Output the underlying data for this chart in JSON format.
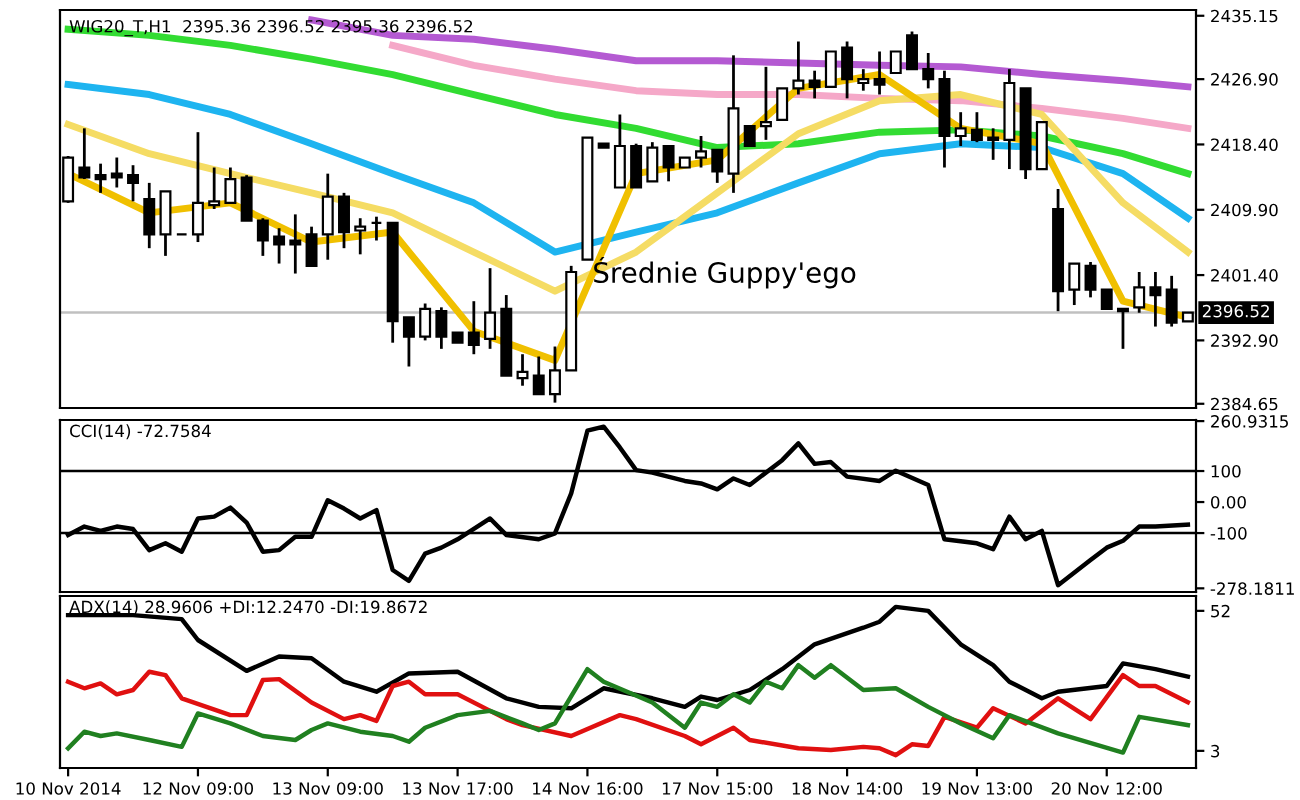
{
  "chart_data": [
    {
      "type": "candlestick",
      "title": "WIG20_T,H1  2395.36 2396.52 2395.36 2396.52",
      "annotations": [
        "Średnie Guppy'ego"
      ],
      "categories": [
        null,
        null,
        null,
        null,
        null,
        null,
        null,
        null,
        null,
        null,
        null,
        null,
        null,
        null,
        null,
        null,
        null,
        null,
        null,
        null,
        null,
        null,
        null,
        null,
        null,
        null,
        null,
        null,
        null,
        null,
        null,
        null,
        null,
        null,
        null,
        null,
        null,
        null,
        null,
        null,
        null,
        null,
        null,
        null,
        null,
        null,
        null,
        null,
        null,
        null,
        null,
        null,
        null,
        null,
        null,
        null,
        null,
        null,
        null,
        null,
        null,
        null,
        null,
        null,
        null,
        null,
        null,
        null,
        null,
        null
      ],
      "ohlc": [
        [
          2411.0,
          2416.9,
          2410.8,
          2416.7
        ],
        [
          2415.4,
          2420.5,
          2413.9,
          2414.1
        ],
        [
          2414.4,
          2415.9,
          2412.1,
          2413.9
        ],
        [
          2414.6,
          2416.7,
          2412.8,
          2414.1
        ],
        [
          2414.4,
          2415.7,
          2411.0,
          2413.4
        ],
        [
          2411.3,
          2413.4,
          2404.9,
          2406.7
        ],
        [
          2406.7,
          2412.3,
          2403.9,
          2412.3
        ],
        [
          2406.7,
          2406.7,
          2406.7,
          2406.7
        ],
        [
          2406.7,
          2420.0,
          2405.7,
          2410.8
        ],
        [
          2410.5,
          2415.4,
          2410.0,
          2411.0
        ],
        [
          2410.8,
          2415.4,
          2410.8,
          2413.9
        ],
        [
          2414.1,
          2414.4,
          2408.5,
          2408.5
        ],
        [
          2408.5,
          2408.8,
          2403.9,
          2405.9
        ],
        [
          2406.4,
          2407.5,
          2402.9,
          2405.4
        ],
        [
          2405.9,
          2409.3,
          2401.6,
          2405.4
        ],
        [
          2406.7,
          2407.7,
          2402.6,
          2402.6
        ],
        [
          2406.7,
          2414.6,
          2403.4,
          2411.6
        ],
        [
          2411.6,
          2412.1,
          2404.9,
          2407.0
        ],
        [
          2407.2,
          2408.8,
          2404.1,
          2407.7
        ],
        [
          2408.2,
          2409.0,
          2405.9,
          2408.2
        ],
        [
          2408.2,
          2408.2,
          2392.6,
          2395.4
        ],
        [
          2395.9,
          2395.9,
          2389.5,
          2393.4
        ],
        [
          2393.4,
          2397.7,
          2392.9,
          2397.0
        ],
        [
          2396.7,
          2397.2,
          2391.8,
          2393.4
        ],
        [
          2393.9,
          2393.9,
          2392.6,
          2392.6
        ],
        [
          2393.9,
          2398.0,
          2391.1,
          2392.3
        ],
        [
          2393.1,
          2402.3,
          2391.8,
          2396.5
        ],
        [
          2397.0,
          2398.8,
          2388.3,
          2388.3
        ],
        [
          2388.0,
          2391.1,
          2387.0,
          2388.8
        ],
        [
          2388.3,
          2390.8,
          2385.9,
          2385.9
        ],
        [
          2385.9,
          2392.1,
          2384.8,
          2389.0
        ],
        [
          2389.0,
          2402.6,
          2389.0,
          2401.8
        ],
        [
          2403.4,
          2419.3,
          2403.4,
          2419.3
        ],
        [
          2418.5,
          2418.5,
          2418.0,
          2418.0
        ],
        [
          2412.8,
          2422.3,
          2412.8,
          2418.2
        ],
        [
          2418.2,
          2418.5,
          2412.8,
          2412.8
        ],
        [
          2413.6,
          2418.7,
          2413.6,
          2418.0
        ],
        [
          2418.2,
          2418.2,
          2413.6,
          2415.4
        ],
        [
          2415.4,
          2416.7,
          2415.4,
          2416.7
        ],
        [
          2416.7,
          2419.5,
          2415.4,
          2417.5
        ],
        [
          2417.7,
          2417.7,
          2413.4,
          2414.9
        ],
        [
          2414.6,
          2430.0,
          2412.1,
          2423.1
        ],
        [
          2420.8,
          2420.8,
          2418.2,
          2418.2
        ],
        [
          2420.8,
          2428.5,
          2419.0,
          2421.3
        ],
        [
          2421.6,
          2425.7,
          2421.6,
          2425.7
        ],
        [
          2425.7,
          2431.8,
          2424.9,
          2426.7
        ],
        [
          2426.7,
          2428.0,
          2424.4,
          2425.9
        ],
        [
          2425.9,
          2430.5,
          2425.9,
          2430.5
        ],
        [
          2431.0,
          2431.8,
          2424.4,
          2426.9
        ],
        [
          2426.4,
          2428.2,
          2425.4,
          2426.9
        ],
        [
          2426.9,
          2430.5,
          2424.9,
          2426.2
        ],
        [
          2427.7,
          2430.5,
          2427.7,
          2430.5
        ],
        [
          2432.6,
          2433.1,
          2428.2,
          2428.2
        ],
        [
          2428.2,
          2430.3,
          2425.7,
          2426.9
        ],
        [
          2426.9,
          2428.0,
          2415.4,
          2419.5
        ],
        [
          2419.5,
          2422.6,
          2418.2,
          2420.5
        ],
        [
          2420.3,
          2422.6,
          2418.7,
          2419.0
        ],
        [
          2419.3,
          2420.5,
          2416.4,
          2419.0
        ],
        [
          2419.0,
          2428.2,
          2415.2,
          2426.4
        ],
        [
          2425.7,
          2425.7,
          2413.9,
          2415.2
        ],
        [
          2415.2,
          2421.3,
          2415.2,
          2421.3
        ],
        [
          2410.0,
          2412.6,
          2396.7,
          2399.3
        ],
        [
          2399.5,
          2402.9,
          2397.5,
          2402.9
        ],
        [
          2402.6,
          2403.1,
          2398.5,
          2399.5
        ],
        [
          2399.5,
          2399.5,
          2397.0,
          2397.0
        ],
        [
          2397.0,
          2397.0,
          2391.8,
          2396.7
        ],
        [
          2397.2,
          2401.8,
          2396.5,
          2399.8
        ],
        [
          2399.8,
          2401.8,
          2394.7,
          2398.8
        ],
        [
          2399.5,
          2401.3,
          2394.7,
          2395.2
        ],
        [
          2395.36,
          2396.52,
          2395.36,
          2396.52
        ]
      ],
      "series": [
        {
          "type": "line",
          "color": "#b45ad2",
          "values": [
            null,
            null,
            null,
            null,
            null,
            null,
            null,
            null,
            null,
            null,
            null,
            null,
            null,
            null,
            null,
            2434.6,
            null,
            null,
            null,
            null,
            2432.6,
            null,
            null,
            null,
            null,
            2432.1,
            null,
            null,
            null,
            null,
            2430.8,
            null,
            null,
            null,
            null,
            2429.3,
            null,
            null,
            null,
            null,
            2429.3,
            null,
            null,
            null,
            null,
            2429.0,
            null,
            null,
            null,
            null,
            2428.7,
            null,
            null,
            null,
            null,
            2428.5,
            null,
            null,
            null,
            null,
            2427.5,
            null,
            null,
            null,
            null,
            2426.7,
            null,
            null,
            null,
            2425.9
          ]
        },
        {
          "type": "line",
          "color": "#f5a8c8",
          "values": [
            null,
            null,
            null,
            null,
            null,
            null,
            null,
            null,
            null,
            null,
            null,
            null,
            null,
            null,
            null,
            null,
            null,
            null,
            null,
            null,
            2431.3,
            null,
            null,
            null,
            null,
            2428.7,
            null,
            null,
            null,
            null,
            2426.9,
            null,
            null,
            null,
            null,
            2425.4,
            null,
            null,
            null,
            null,
            2424.9,
            null,
            null,
            null,
            null,
            2424.9,
            null,
            null,
            null,
            null,
            2424.4,
            null,
            null,
            null,
            null,
            2424.1,
            null,
            null,
            null,
            null,
            2423.1,
            null,
            null,
            null,
            null,
            2421.8,
            null,
            null,
            null,
            2420.5
          ]
        },
        {
          "type": "line",
          "color": "#32dc32",
          "values": [
            2433.4,
            null,
            null,
            null,
            null,
            2432.6,
            null,
            null,
            null,
            null,
            2431.3,
            null,
            null,
            null,
            null,
            2429.5,
            null,
            null,
            null,
            null,
            2427.5,
            null,
            null,
            null,
            null,
            2424.9,
            null,
            null,
            null,
            null,
            2422.3,
            null,
            null,
            null,
            null,
            2420.5,
            null,
            null,
            null,
            null,
            2418.0,
            null,
            null,
            null,
            null,
            2418.5,
            null,
            null,
            null,
            null,
            2420.0,
            null,
            null,
            null,
            null,
            2420.3,
            null,
            null,
            null,
            null,
            2419.5,
            null,
            null,
            null,
            null,
            2417.2,
            null,
            null,
            null,
            2414.6
          ]
        },
        {
          "type": "line",
          "color": "#1eb4f0",
          "values": [
            2426.2,
            null,
            null,
            null,
            null,
            2424.9,
            null,
            null,
            null,
            null,
            2422.3,
            null,
            null,
            null,
            null,
            2418.5,
            null,
            null,
            null,
            null,
            2414.6,
            null,
            null,
            null,
            null,
            2410.8,
            null,
            null,
            null,
            null,
            2404.4,
            null,
            null,
            null,
            null,
            2407.0,
            null,
            null,
            null,
            null,
            2409.5,
            null,
            null,
            null,
            null,
            2413.4,
            null,
            null,
            null,
            null,
            2417.2,
            null,
            null,
            null,
            null,
            2418.5,
            null,
            null,
            null,
            null,
            2418.0,
            null,
            null,
            null,
            null,
            2414.6,
            null,
            null,
            null,
            2408.8
          ]
        },
        {
          "type": "line",
          "color": "#f5dc64",
          "values": [
            2421.0,
            null,
            null,
            null,
            null,
            2417.2,
            null,
            null,
            null,
            null,
            2414.6,
            null,
            null,
            null,
            null,
            2412.1,
            null,
            null,
            null,
            null,
            2409.5,
            null,
            null,
            null,
            null,
            2404.4,
            null,
            null,
            null,
            null,
            2399.3,
            null,
            null,
            null,
            null,
            2404.4,
            null,
            null,
            null,
            null,
            2412.1,
            null,
            null,
            null,
            null,
            2419.8,
            null,
            null,
            null,
            null,
            2424.1,
            null,
            null,
            null,
            null,
            2424.9,
            null,
            null,
            null,
            null,
            2422.3,
            null,
            null,
            null,
            null,
            2410.8,
            null,
            null,
            null,
            2404.4
          ]
        },
        {
          "type": "line",
          "color": "#f0c000",
          "values": [
            2414.6,
            null,
            null,
            null,
            null,
            2409.5,
            null,
            null,
            null,
            null,
            2410.8,
            null,
            null,
            null,
            null,
            2405.7,
            null,
            null,
            null,
            null,
            2407.0,
            null,
            null,
            null,
            null,
            2394.1,
            null,
            null,
            null,
            null,
            2390.3,
            null,
            null,
            null,
            null,
            2414.6,
            null,
            null,
            null,
            null,
            2416.4,
            null,
            null,
            null,
            null,
            2425.7,
            null,
            null,
            null,
            null,
            2427.5,
            null,
            null,
            null,
            null,
            2420.5,
            null,
            null,
            null,
            null,
            2418.5,
            null,
            null,
            null,
            null,
            2398.0,
            null,
            null,
            null,
            2395.9
          ]
        }
      ],
      "ylim": [
        2384.1,
        2435.9
      ],
      "yticks": [
        2435.15,
        {
          "value": 2426.9,
          "label": "2426.90"
        },
        {
          "value": 2418.4,
          "label": "2418.40"
        },
        {
          "value": 2409.9,
          "label": "2409.90"
        },
        {
          "value": 2401.4,
          "label": "2401.40"
        },
        {
          "value": 2392.9,
          "label": "2392.90"
        },
        2384.65
      ],
      "ref_lines": [
        {
          "axis": "y",
          "value": 2396.52,
          "label": "2396.52",
          "color": "#c0c0c0"
        }
      ],
      "tick_labels": "y",
      "grid": false,
      "legend": false
    },
    {
      "type": "line",
      "title": "CCI(14) -72.7584",
      "categories": [
        null,
        null,
        null,
        null,
        null,
        null,
        null,
        null,
        null,
        null,
        null,
        null,
        null,
        null,
        null,
        null,
        null,
        null,
        null,
        null,
        null,
        null,
        null,
        null,
        null,
        null,
        null,
        null,
        null,
        null,
        null,
        null,
        null,
        null,
        null,
        null,
        null,
        null,
        null,
        null,
        null,
        null,
        null,
        null,
        null,
        null,
        null,
        null,
        null,
        null,
        null,
        null,
        null,
        null,
        null,
        null,
        null,
        null,
        null,
        null,
        null,
        null,
        null,
        null,
        null,
        null,
        null,
        null,
        null,
        null
      ],
      "series": [
        {
          "color": "#000000",
          "values": [
            -106,
            -79,
            -93,
            -79,
            -87,
            -155,
            -133,
            -160,
            -53,
            -47,
            -18,
            -66,
            -160,
            -155,
            -112,
            -112,
            6,
            -21,
            -53,
            -26,
            -219,
            -254,
            -166,
            -147,
            -120,
            null,
            -53,
            -106,
            null,
            -120,
            -101,
            28,
            230,
            243,
            176,
            103,
            95,
            null,
            68,
            60,
            41,
            76,
            55,
            null,
            135,
            189,
            123,
            129,
            82,
            null,
            68,
            101,
            null,
            55,
            -120,
            null,
            -133,
            -152,
            -47,
            -120,
            -93,
            -268,
            null,
            -187,
            -147,
            -125,
            -79,
            -79,
            null,
            -73
          ]
        }
      ],
      "ylim": [
        -290,
        264.5
      ],
      "yticks": [
        260.9315,
        100,
        {
          "value": 0,
          "label": "0.00"
        },
        -100,
        -278.1811
      ],
      "ref_lines": [
        {
          "axis": "y",
          "value": 100,
          "color": "#000000"
        },
        {
          "axis": "y",
          "value": -100,
          "color": "#000000"
        }
      ],
      "tick_labels": "y",
      "grid": false,
      "legend": false
    },
    {
      "type": "line",
      "title": "ADX(14) 28.9606 +DI:12.2470 -DI:19.8672",
      "categories": [
        "10 Nov 2014",
        null,
        null,
        null,
        null,
        null,
        null,
        null,
        "12 Nov 09:00",
        null,
        null,
        null,
        null,
        null,
        null,
        null,
        "13 Nov 09:00",
        null,
        null,
        null,
        null,
        null,
        null,
        null,
        "13 Nov 17:00",
        null,
        null,
        null,
        null,
        null,
        null,
        null,
        "14 Nov 16:00",
        null,
        null,
        null,
        null,
        null,
        null,
        null,
        "17 Nov 15:00",
        null,
        null,
        null,
        null,
        null,
        null,
        null,
        "18 Nov 14:00",
        null,
        null,
        null,
        null,
        null,
        null,
        null,
        "19 Nov 13:00",
        null,
        null,
        null,
        null,
        null,
        null,
        null,
        "20 Nov 12:00",
        null,
        null,
        null,
        null,
        null
      ],
      "series": [
        {
          "color": "#000000",
          "values": [
            50.5,
            null,
            null,
            null,
            50.5,
            null,
            null,
            49.1,
            41.8,
            null,
            null,
            31.0,
            null,
            36.0,
            null,
            35.4,
            null,
            27.2,
            null,
            23.7,
            null,
            30.1,
            null,
            null,
            30.7,
            null,
            null,
            21.4,
            null,
            18.4,
            null,
            17.9,
            null,
            24.9,
            null,
            null,
            21.4,
            null,
            18.4,
            22.0,
            20.8,
            null,
            24.3,
            null,
            31.6,
            null,
            40.3,
            null,
            null,
            46.1,
            48.2,
            53.4,
            null,
            52.0,
            null,
            40.3,
            null,
            33.0,
            27.2,
            null,
            21.4,
            23.7,
            null,
            null,
            25.7,
            33.6,
            null,
            31.6,
            null,
            29
          ]
        },
        {
          "color": "#e01010",
          "values": [
            27.2,
            24.9,
            26.6,
            22.8,
            24.3,
            30.7,
            29.5,
            21.4,
            null,
            null,
            15.5,
            15.5,
            27.8,
            28.1,
            null,
            19.9,
            null,
            14.1,
            15.5,
            13.5,
            25.7,
            27.2,
            22.8,
            null,
            22.8,
            null,
            null,
            14.1,
            12.0,
            null,
            null,
            8.2,
            null,
            null,
            15.5,
            14.1,
            null,
            null,
            8.2,
            5.3,
            null,
            11.1,
            6.8,
            null,
            null,
            3.9,
            null,
            3.3,
            null,
            4.4,
            3.9,
            1.5,
            5.3,
            4.7,
            14.9,
            null,
            11.1,
            17.9,
            null,
            12.6,
            null,
            21.4,
            null,
            14.1,
            null,
            29.5,
            25.7,
            25.7,
            null,
            20
          ]
        },
        {
          "color": "#208020",
          "values": [
            3.9,
            9.7,
            8.2,
            9.1,
            null,
            6.8,
            null,
            4.4,
            16.1,
            null,
            12.6,
            null,
            8.2,
            null,
            6.8,
            10.3,
            12.6,
            null,
            9.7,
            null,
            8.2,
            6.2,
            11.1,
            null,
            15.5,
            null,
            17.0,
            null,
            12.6,
            10.3,
            12.6,
            null,
            31.6,
            27.2,
            null,
            null,
            19.9,
            null,
            11.1,
            19.9,
            18.4,
            22.8,
            19.9,
            27.2,
            24.9,
            33.0,
            28.6,
            33.0,
            null,
            24.3,
            null,
            24.9,
            null,
            18.4,
            null,
            12.6,
            null,
            7.4,
            15.5,
            null,
            null,
            9.1,
            null,
            null,
            null,
            2.4,
            14.9,
            null,
            null,
            12
          ]
        }
      ],
      "ylim": [
        -3.0,
        57.2
      ],
      "yticks": [
        52,
        3
      ],
      "grid": false,
      "legend": false
    }
  ]
}
